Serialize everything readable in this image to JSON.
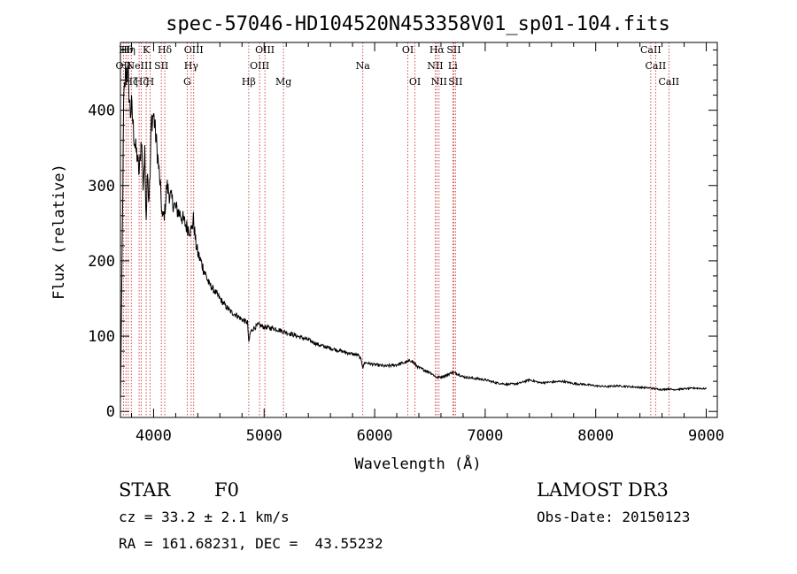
{
  "chart_data": {
    "type": "line",
    "title": "spec-57046-HD104520N453358V01_sp01-104.fits",
    "xlabel": "Wavelength (Å)",
    "ylabel": "Flux (relative)",
    "xlim": [
      3700,
      9100
    ],
    "ylim": [
      -8,
      490
    ],
    "x_ticks": [
      4000,
      5000,
      6000,
      7000,
      8000,
      9000
    ],
    "x_tick_labels": [
      "4000",
      "5000",
      "6000",
      "7000",
      "8000",
      "9000"
    ],
    "y_ticks": [
      0,
      100,
      200,
      300,
      400
    ],
    "y_tick_labels": [
      "0",
      "100",
      "200",
      "300",
      "400"
    ],
    "series": [
      {
        "name": "flux",
        "x": [
          3700,
          3710,
          3730,
          3750,
          3770,
          3790,
          3800,
          3820,
          3835,
          3850,
          3870,
          3890,
          3905,
          3920,
          3933,
          3945,
          3955,
          3968,
          3980,
          4000,
          4030,
          4060,
          4080,
          4101,
          4120,
          4150,
          4200,
          4250,
          4300,
          4340,
          4360,
          4380,
          4400,
          4450,
          4500,
          4550,
          4600,
          4650,
          4700,
          4750,
          4800,
          4850,
          4861,
          4875,
          4900,
          4950,
          5000,
          5100,
          5200,
          5300,
          5400,
          5500,
          5600,
          5700,
          5800,
          5850,
          5880,
          5893,
          5910,
          6000,
          6100,
          6200,
          6300,
          6330,
          6370,
          6400,
          6450,
          6500,
          6563,
          6600,
          6650,
          6700,
          6750,
          6800,
          6900,
          7000,
          7100,
          7200,
          7300,
          7400,
          7500,
          7600,
          7700,
          7800,
          7900,
          8000,
          8100,
          8200,
          8300,
          8400,
          8500,
          8542,
          8600,
          8662,
          8700,
          8800,
          8900,
          9000
        ],
        "y": [
          10,
          130,
          410,
          455,
          445,
          395,
          405,
          370,
          350,
          340,
          315,
          365,
          300,
          340,
          260,
          330,
          280,
          310,
          385,
          395,
          350,
          300,
          255,
          265,
          300,
          285,
          270,
          260,
          245,
          240,
          255,
          225,
          210,
          190,
          170,
          160,
          150,
          140,
          132,
          128,
          122,
          118,
          90,
          105,
          110,
          115,
          112,
          110,
          105,
          100,
          95,
          88,
          84,
          80,
          76,
          75,
          68,
          58,
          65,
          62,
          60,
          62,
          66,
          68,
          62,
          58,
          55,
          52,
          45,
          46,
          48,
          52,
          50,
          46,
          44,
          42,
          38,
          36,
          37,
          42,
          38,
          39,
          40,
          37,
          36,
          34,
          33,
          34,
          33,
          32,
          31,
          30,
          29,
          30,
          29,
          30,
          31,
          30
        ]
      }
    ],
    "lines": [
      {
        "wavelength": 3727,
        "label": "OII",
        "row": 1
      },
      {
        "wavelength": 3750,
        "label": "Hθ",
        "row": 0
      },
      {
        "wavelength": 3771,
        "label": "Hη",
        "row": 0
      },
      {
        "wavelength": 3798,
        "label": "Hζ",
        "row": 2
      },
      {
        "wavelength": 3869,
        "label": "NeIII",
        "row": 1
      },
      {
        "wavelength": 3889,
        "label": "Hζ",
        "row": 2
      },
      {
        "wavelength": 3933,
        "label": "K",
        "row": 0
      },
      {
        "wavelength": 3968,
        "label": "H",
        "row": 2
      },
      {
        "wavelength": 4070,
        "label": "SII",
        "row": 1
      },
      {
        "wavelength": 4101,
        "label": "Hδ",
        "row": 0
      },
      {
        "wavelength": 4304,
        "label": "G",
        "row": 2
      },
      {
        "wavelength": 4340,
        "label": "Hγ",
        "row": 1
      },
      {
        "wavelength": 4363,
        "label": "OIII",
        "row": 0
      },
      {
        "wavelength": 4861,
        "label": "Hβ",
        "row": 2
      },
      {
        "wavelength": 4959,
        "label": "OIII",
        "row": 1
      },
      {
        "wavelength": 5007,
        "label": "OIII",
        "row": 0
      },
      {
        "wavelength": 5175,
        "label": "Mg",
        "row": 2
      },
      {
        "wavelength": 5893,
        "label": "Na",
        "row": 1
      },
      {
        "wavelength": 6300,
        "label": "OI",
        "row": 0
      },
      {
        "wavelength": 6364,
        "label": "OI",
        "row": 2
      },
      {
        "wavelength": 6548,
        "label": "NII",
        "row": 1
      },
      {
        "wavelength": 6563,
        "label": "Hα",
        "row": 0
      },
      {
        "wavelength": 6583,
        "label": "NII",
        "row": 2
      },
      {
        "wavelength": 6707,
        "label": "Li",
        "row": 1
      },
      {
        "wavelength": 6716,
        "label": "SII",
        "row": 0
      },
      {
        "wavelength": 6731,
        "label": "SII",
        "row": 2
      },
      {
        "wavelength": 8498,
        "label": "CaII",
        "row": 0
      },
      {
        "wavelength": 8542,
        "label": "CaII",
        "row": 1
      },
      {
        "wavelength": 8662,
        "label": "CaII",
        "row": 2
      }
    ]
  },
  "info": {
    "class_label": "STAR",
    "subclass": "F0",
    "survey": "LAMOST DR3",
    "cz": "cz = 33.2 ± 2.1 km/s",
    "obs_date": "Obs-Date: 20150123",
    "coords": "RA = 161.68231, DEC =  43.55232"
  },
  "colors": {
    "spectrum": "#000000",
    "line_marker": "#cc2222",
    "axis": "#000000"
  }
}
